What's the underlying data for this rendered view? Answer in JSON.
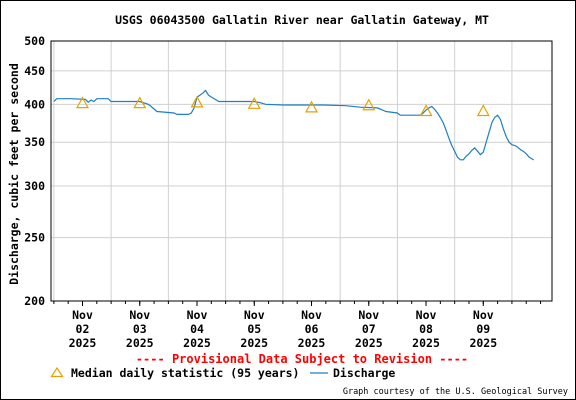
{
  "chart_data": {
    "type": "line",
    "title": "USGS 06043500 Gallatin River near Gallatin Gateway, MT",
    "ylabel": "Discharge, cubic feet per second",
    "xlabel": "",
    "y_scale": "log",
    "ylim": [
      200,
      500
    ],
    "y_ticks": [
      200,
      250,
      300,
      350,
      400,
      450,
      500
    ],
    "xlim": [
      -0.55,
      8.2
    ],
    "x_ticks": [
      {
        "x": 0,
        "labels": [
          "Nov",
          "02",
          "2025"
        ]
      },
      {
        "x": 1,
        "labels": [
          "Nov",
          "03",
          "2025"
        ]
      },
      {
        "x": 2,
        "labels": [
          "Nov",
          "04",
          "2025"
        ]
      },
      {
        "x": 3,
        "labels": [
          "Nov",
          "05",
          "2025"
        ]
      },
      {
        "x": 4,
        "labels": [
          "Nov",
          "06",
          "2025"
        ]
      },
      {
        "x": 5,
        "labels": [
          "Nov",
          "07",
          "2025"
        ]
      },
      {
        "x": 6,
        "labels": [
          "Nov",
          "08",
          "2025"
        ]
      },
      {
        "x": 7,
        "labels": [
          "Nov",
          "09",
          "2025"
        ]
      }
    ],
    "grid": true,
    "series": [
      {
        "name": "Discharge",
        "color": "#1e7fc2",
        "style": "line",
        "points": [
          [
            -0.5,
            404
          ],
          [
            -0.45,
            408
          ],
          [
            -0.2,
            408
          ],
          [
            0.05,
            407
          ],
          [
            0.1,
            403
          ],
          [
            0.15,
            406
          ],
          [
            0.2,
            404
          ],
          [
            0.25,
            408
          ],
          [
            0.45,
            408
          ],
          [
            0.5,
            404
          ],
          [
            1.0,
            404
          ],
          [
            1.15,
            400
          ],
          [
            1.2,
            397
          ],
          [
            1.3,
            390
          ],
          [
            1.6,
            388
          ],
          [
            1.65,
            386
          ],
          [
            1.85,
            386
          ],
          [
            1.9,
            388
          ],
          [
            1.95,
            395
          ],
          [
            2.0,
            410
          ],
          [
            2.1,
            416
          ],
          [
            2.15,
            420
          ],
          [
            2.2,
            413
          ],
          [
            2.3,
            408
          ],
          [
            2.38,
            404
          ],
          [
            3.0,
            404
          ],
          [
            3.12,
            402
          ],
          [
            3.2,
            400
          ],
          [
            3.5,
            399
          ],
          [
            4.2,
            399
          ],
          [
            4.6,
            398
          ],
          [
            4.85,
            396
          ],
          [
            5.15,
            395
          ],
          [
            5.3,
            390
          ],
          [
            5.5,
            388
          ],
          [
            5.55,
            385
          ],
          [
            5.9,
            385
          ],
          [
            5.95,
            388
          ],
          [
            6.0,
            392
          ],
          [
            6.05,
            395
          ],
          [
            6.1,
            397
          ],
          [
            6.15,
            393
          ],
          [
            6.2,
            388
          ],
          [
            6.25,
            382
          ],
          [
            6.3,
            375
          ],
          [
            6.35,
            365
          ],
          [
            6.4,
            355
          ],
          [
            6.45,
            346
          ],
          [
            6.5,
            339
          ],
          [
            6.55,
            332
          ],
          [
            6.6,
            329
          ],
          [
            6.65,
            329
          ],
          [
            6.7,
            333
          ],
          [
            6.75,
            336
          ],
          [
            6.8,
            340
          ],
          [
            6.85,
            343
          ],
          [
            6.9,
            339
          ],
          [
            6.95,
            335
          ],
          [
            7.0,
            338
          ],
          [
            7.05,
            350
          ],
          [
            7.1,
            362
          ],
          [
            7.15,
            375
          ],
          [
            7.2,
            382
          ],
          [
            7.25,
            385
          ],
          [
            7.3,
            379
          ],
          [
            7.35,
            367
          ],
          [
            7.4,
            357
          ],
          [
            7.45,
            350
          ],
          [
            7.5,
            347
          ],
          [
            7.55,
            346
          ],
          [
            7.6,
            344
          ],
          [
            7.65,
            341
          ],
          [
            7.7,
            339
          ],
          [
            7.75,
            336
          ],
          [
            7.8,
            332
          ],
          [
            7.85,
            330
          ],
          [
            7.88,
            329
          ]
        ]
      },
      {
        "name": "Median daily statistic (95 years)",
        "color": "#e6a100",
        "style": "triangle",
        "points": [
          [
            0.0,
            401
          ],
          [
            1.0,
            401
          ],
          [
            2.0,
            402
          ],
          [
            3.0,
            400
          ],
          [
            4.0,
            395
          ],
          [
            5.0,
            398
          ],
          [
            6.0,
            390
          ],
          [
            7.0,
            390
          ]
        ]
      }
    ],
    "legend": [
      {
        "label": "Median daily statistic (95 years)",
        "marker": "triangle"
      },
      {
        "label": "Discharge",
        "marker": "line"
      }
    ],
    "legend_placement": "bottom",
    "provisional_note": "---- Provisional Data Subject to Revision ----",
    "credit": "Graph courtesy of the U.S. Geological Survey",
    "colors": {
      "axis": "#000000",
      "grid": "#d0d0d0",
      "provisional": "#ff0000"
    }
  }
}
